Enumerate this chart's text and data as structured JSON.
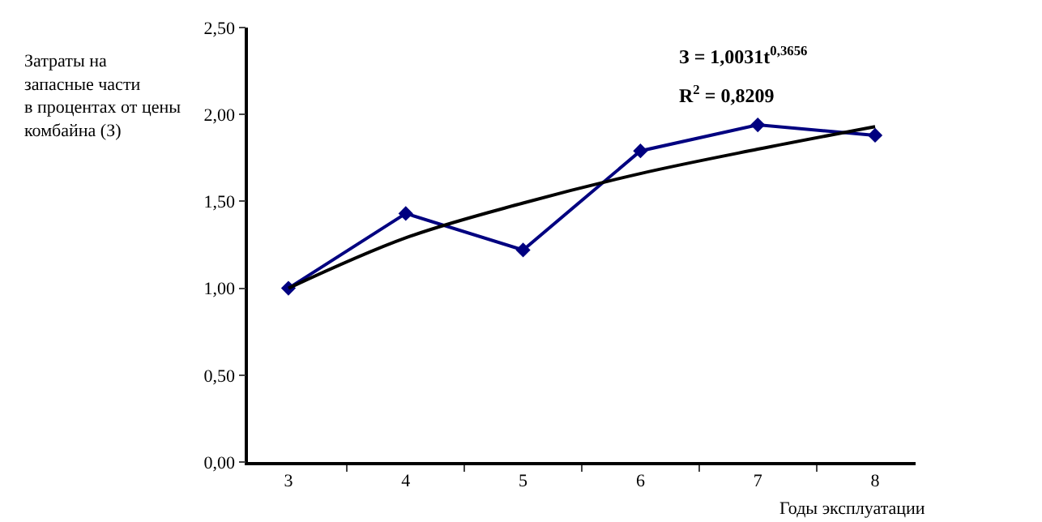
{
  "chart_data": {
    "type": "line",
    "xlabel": "Годы эксплуатации",
    "ylabel": "Затраты на\nзапасные части\nв процентах от цены\nкомбайна (З)",
    "categories": [
      "3",
      "4",
      "5",
      "6",
      "7",
      "8"
    ],
    "series": [
      {
        "color": "#000080",
        "marker": "diamond",
        "values": [
          1.0,
          1.43,
          1.22,
          1.79,
          1.94,
          1.88
        ]
      },
      {
        "color": "#000000",
        "marker": "none",
        "values": [
          1.0,
          1.29,
          1.49,
          1.66,
          1.8,
          1.93
        ]
      }
    ],
    "annotations": [
      "З = 1,0031t$^{0,3656}$",
      "R$^{2}$ = 0,8209"
    ],
    "ylim": [
      0,
      2.5
    ],
    "yticks": [
      {
        "value": 0,
        "label": "0,00"
      },
      {
        "value": 0.5,
        "label": "0,50"
      },
      {
        "value": 1,
        "label": "1,00"
      },
      {
        "value": 1.5,
        "label": "1,50"
      },
      {
        "value": 2,
        "label": "2,00"
      },
      {
        "value": 2.5,
        "label": "2,50"
      }
    ],
    "line_style": "solid"
  }
}
